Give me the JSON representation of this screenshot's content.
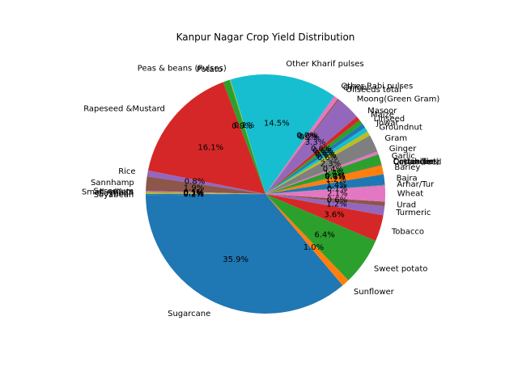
{
  "chart_data": {
    "type": "pie",
    "title": "Kanpur Nagar Crop Yield Distribution",
    "start_angle_deg": 180,
    "direction": "counterclockwise",
    "autopct_format": "%.1f%%",
    "slices": [
      {
        "label": "Soyabean",
        "value": 0.2,
        "color": "#1f77b4"
      },
      {
        "label": "Sugarcane",
        "value": 35.3,
        "color": "#1f77b4"
      },
      {
        "label": "Sunflower",
        "value": 1.0,
        "color": "#ff7f0e"
      },
      {
        "label": "Sweet potato",
        "value": 6.3,
        "color": "#2ca02c"
      },
      {
        "label": "Tobacco",
        "value": 3.5,
        "color": "#d62728"
      },
      {
        "label": "Turmeric",
        "value": 1.2,
        "color": "#9467bd"
      },
      {
        "label": "Urad",
        "value": 0.6,
        "color": "#8c564b"
      },
      {
        "label": "Wheat",
        "value": 2.1,
        "color": "#e377c2"
      },
      {
        "label": "Arhar/Tur",
        "value": 0.1,
        "color": "#7f7f7f"
      },
      {
        "label": "Bajra",
        "value": 1.4,
        "color": "#1f77b4"
      },
      {
        "label": "Barley",
        "value": 1.2,
        "color": "#ff7f0e"
      },
      {
        "label": "Castor seed",
        "value": 0.1,
        "color": "#8c564b"
      },
      {
        "label": "Coriander",
        "value": 0.0,
        "color": "#e377c2"
      },
      {
        "label": "Cotton(lint)",
        "value": 0.0,
        "color": "#7f7f7f"
      },
      {
        "label": "Dry chillies",
        "value": 0.0,
        "color": "#bcbd22"
      },
      {
        "label": "Garlic",
        "value": 1.4,
        "color": "#2ca02c"
      },
      {
        "label": "Ginger",
        "value": 0.4,
        "color": "#e377c2"
      },
      {
        "label": "Gram",
        "value": 2.3,
        "color": "#7f7f7f"
      },
      {
        "label": "Groundnut",
        "value": 0.6,
        "color": "#bcbd22"
      },
      {
        "label": "Jowar",
        "value": 0.6,
        "color": "#17becf"
      },
      {
        "label": "Linseed",
        "value": 0.6,
        "color": "#1f77b4"
      },
      {
        "label": "Maize",
        "value": 0.6,
        "color": "#2ca02c"
      },
      {
        "label": "Masoor",
        "value": 0.6,
        "color": "#d62728"
      },
      {
        "label": "Moong(Green Gram)",
        "value": 3.2,
        "color": "#9467bd"
      },
      {
        "label": "Oilseeds total",
        "value": 0.2,
        "color": "#8c564b"
      },
      {
        "label": "Onion",
        "value": 0.6,
        "color": "#e377c2"
      },
      {
        "label": "Other  Rabi pulses",
        "value": 0.0,
        "color": "#7f7f7f"
      },
      {
        "label": "Other Kharif pulses",
        "value": 14.2,
        "color": "#17becf"
      },
      {
        "label": "Peas & beans (Pulses)",
        "value": 0.1,
        "color": "#bcbd22"
      },
      {
        "label": "Potato",
        "value": 0.9,
        "color": "#2ca02c"
      },
      {
        "label": "Rapeseed &Mustard",
        "value": 15.8,
        "color": "#d62728"
      },
      {
        "label": "Rice",
        "value": 0.8,
        "color": "#9467bd"
      },
      {
        "label": "Sannhamp",
        "value": 1.9,
        "color": "#8c564b"
      },
      {
        "label": "Sesamum",
        "value": 0.1,
        "color": "#e377c2"
      },
      {
        "label": "Small millets",
        "value": 0.1,
        "color": "#7f7f7f"
      },
      {
        "label": "Soybean",
        "value": 0.2,
        "color": "#bcbd22"
      }
    ]
  }
}
